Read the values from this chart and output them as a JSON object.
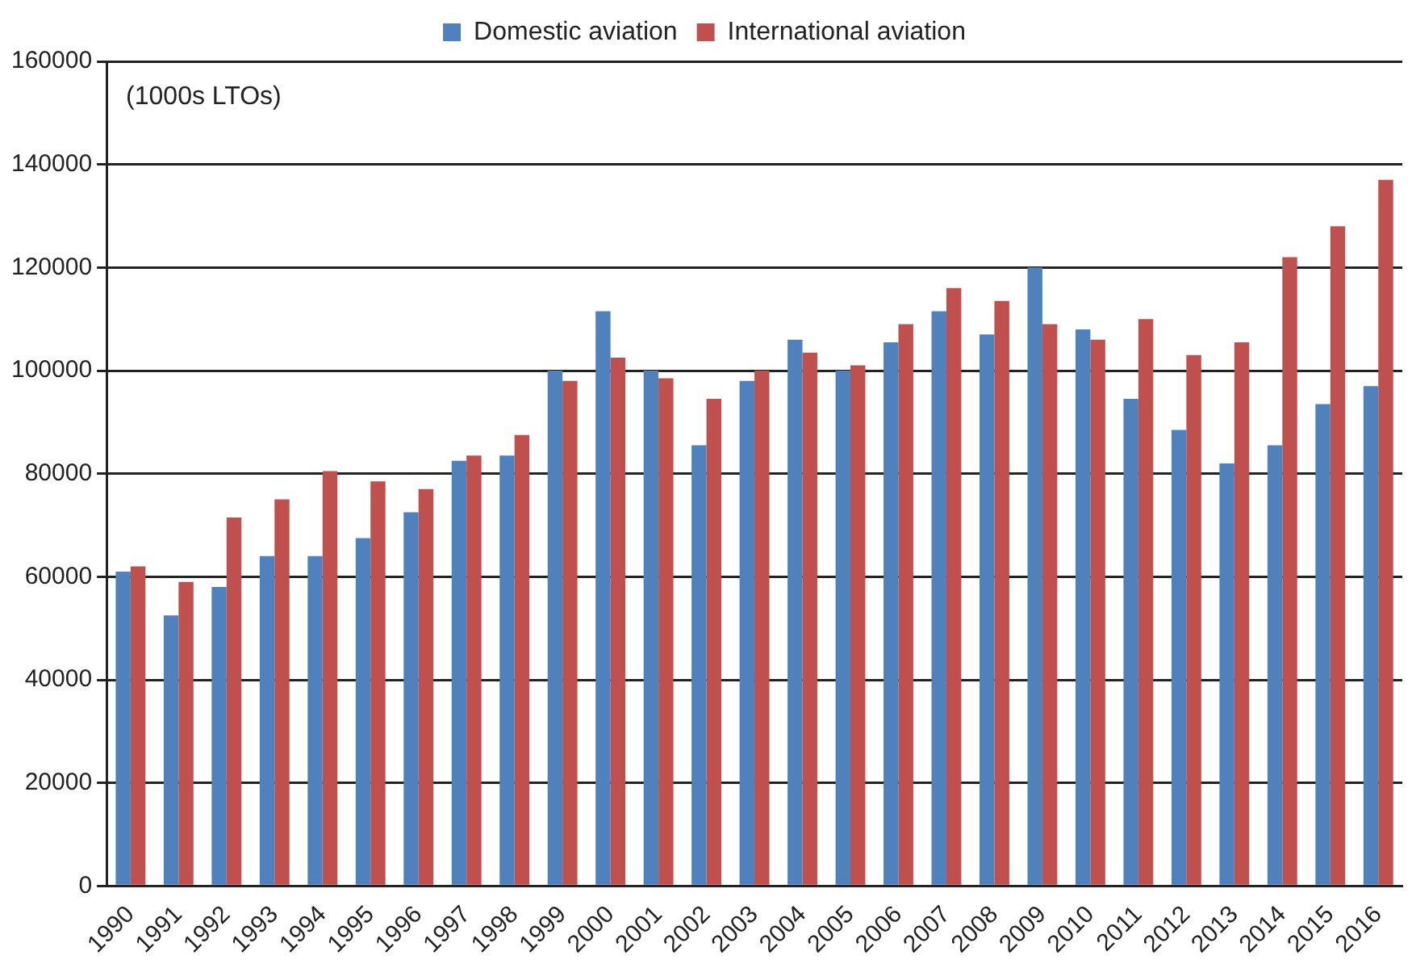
{
  "chart_data": {
    "type": "bar",
    "categories": [
      "1990",
      "1991",
      "1992",
      "1993",
      "1994",
      "1995",
      "1996",
      "1997",
      "1998",
      "1999",
      "2000",
      "2001",
      "2002",
      "2003",
      "2004",
      "2005",
      "2006",
      "2007",
      "2008",
      "2009",
      "2010",
      "2011",
      "2012",
      "2013",
      "2014",
      "2015",
      "2016"
    ],
    "series": [
      {
        "name": "Domestic aviation",
        "color": "#4f81bd",
        "values": [
          61000,
          52500,
          58000,
          64000,
          64000,
          67500,
          72500,
          82500,
          83500,
          100000,
          111500,
          100000,
          85500,
          98000,
          106000,
          100000,
          105500,
          111500,
          107000,
          120000,
          108000,
          94500,
          88500,
          82000,
          85500,
          93500,
          97000
        ]
      },
      {
        "name": "International aviation",
        "color": "#c0504d",
        "values": [
          62000,
          59000,
          71500,
          75000,
          80500,
          78500,
          77000,
          83500,
          87500,
          98000,
          102500,
          98500,
          94500,
          100000,
          103500,
          101000,
          109000,
          116000,
          113500,
          109000,
          106000,
          110000,
          103000,
          105500,
          122000,
          128000,
          137000
        ]
      }
    ],
    "ylim": [
      0,
      160000
    ],
    "yticks": [
      0,
      20000,
      40000,
      60000,
      80000,
      100000,
      120000,
      140000,
      160000
    ],
    "grid": "y",
    "legend": "top",
    "annotations": [
      "(1000s LTOs)"
    ]
  }
}
